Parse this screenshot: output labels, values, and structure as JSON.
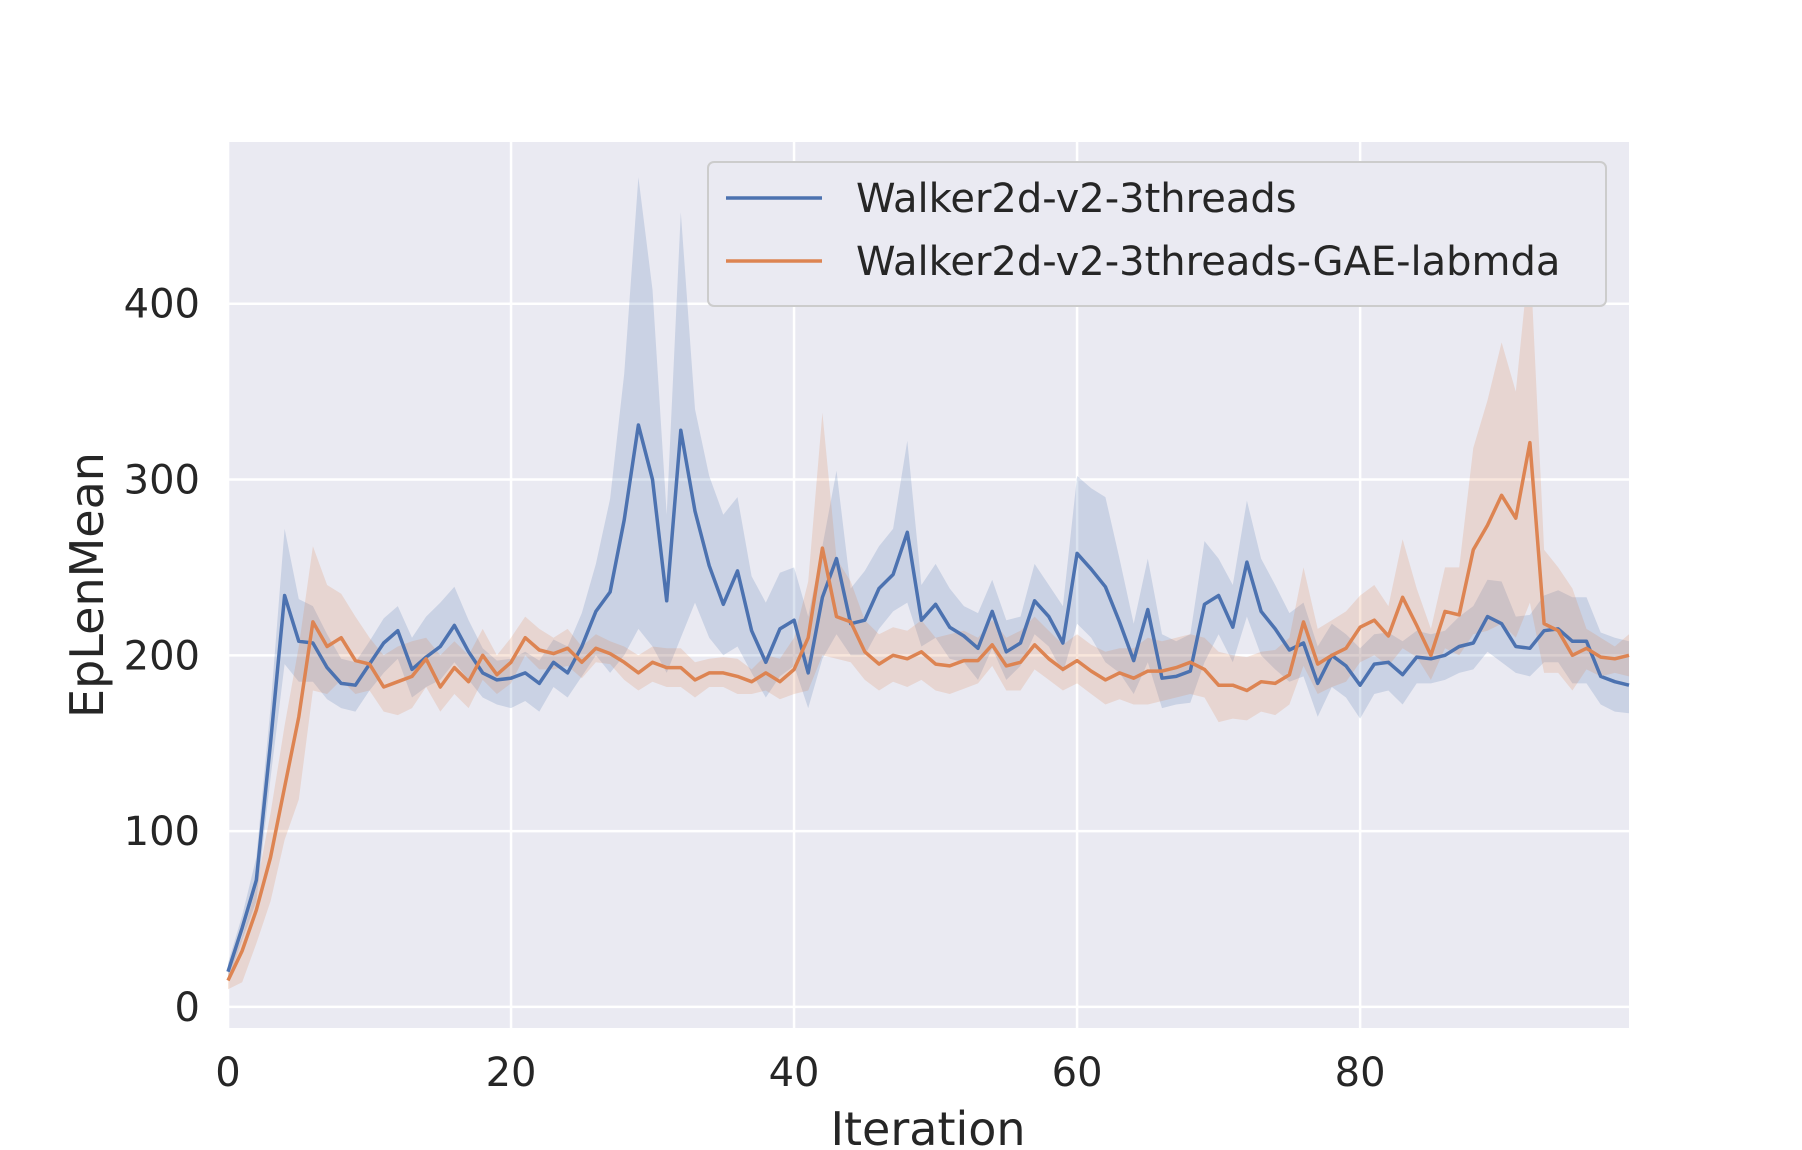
{
  "chart_data": {
    "type": "line",
    "xlabel": "Iteration",
    "ylabel": "EpLenMean",
    "xlim": [
      0,
      99
    ],
    "ylim": [
      -12,
      492
    ],
    "xticks": [
      0,
      20,
      40,
      60,
      80
    ],
    "yticks": [
      0,
      100,
      200,
      300,
      400
    ],
    "grid": true,
    "legend_position": "top-right",
    "x": [
      0,
      1,
      2,
      3,
      4,
      5,
      6,
      7,
      8,
      9,
      10,
      11,
      12,
      13,
      14,
      15,
      16,
      17,
      18,
      19,
      20,
      21,
      22,
      23,
      24,
      25,
      26,
      27,
      28,
      29,
      30,
      31,
      32,
      33,
      34,
      35,
      36,
      37,
      38,
      39,
      40,
      41,
      42,
      43,
      44,
      45,
      46,
      47,
      48,
      49,
      50,
      51,
      52,
      53,
      54,
      55,
      56,
      57,
      58,
      59,
      60,
      61,
      62,
      63,
      64,
      65,
      66,
      67,
      68,
      69,
      70,
      71,
      72,
      73,
      74,
      75,
      76,
      77,
      78,
      79,
      80,
      81,
      82,
      83,
      84,
      85,
      86,
      87,
      88,
      89,
      90,
      91,
      92,
      93,
      94,
      95,
      96,
      97,
      98,
      99
    ],
    "series": [
      {
        "name": "Walker2d-v2-3threads",
        "color": "#4c72b0",
        "values": [
          20,
          45,
          72,
          150,
          234,
          208,
          207,
          193,
          184,
          183,
          195,
          207,
          214,
          192,
          199,
          205,
          217,
          202,
          190,
          186,
          187,
          190,
          184,
          196,
          190,
          205,
          225,
          236,
          277,
          331,
          300,
          231,
          328,
          282,
          251,
          229,
          248,
          214,
          196,
          215,
          220,
          190,
          233,
          255,
          218,
          220,
          238,
          246,
          270,
          220,
          229,
          216,
          211,
          204,
          225,
          202,
          207,
          231,
          222,
          207,
          258,
          249,
          239,
          219,
          197,
          226,
          187,
          188,
          191,
          229,
          234,
          216,
          253,
          225,
          215,
          203,
          207,
          184,
          200,
          194,
          183,
          195,
          196,
          189,
          199,
          198,
          200,
          205,
          207,
          222,
          218,
          205,
          204,
          214,
          215,
          208,
          208,
          188,
          185,
          183
        ],
        "band_upper": [
          25,
          52,
          85,
          170,
          272,
          232,
          228,
          212,
          198,
          196,
          208,
          221,
          228,
          210,
          222,
          230,
          239,
          220,
          204,
          197,
          198,
          202,
          197,
          209,
          205,
          224,
          252,
          289,
          360,
          472,
          408,
          280,
          452,
          340,
          302,
          280,
          290,
          245,
          230,
          247,
          250,
          222,
          262,
          305,
          238,
          248,
          262,
          272,
          322,
          240,
          252,
          238,
          228,
          224,
          243,
          220,
          222,
          252,
          240,
          228,
          302,
          295,
          290,
          255,
          218,
          255,
          212,
          208,
          212,
          265,
          255,
          240,
          288,
          255,
          240,
          224,
          230,
          205,
          218,
          212,
          204,
          212,
          213,
          208,
          214,
          212,
          214,
          222,
          228,
          243,
          242,
          222,
          223,
          234,
          237,
          233,
          233,
          213,
          210,
          208
        ],
        "band_lower": [
          15,
          38,
          60,
          130,
          195,
          185,
          185,
          175,
          170,
          168,
          180,
          190,
          198,
          176,
          182,
          186,
          196,
          186,
          176,
          172,
          170,
          174,
          168,
          182,
          176,
          188,
          200,
          190,
          200,
          215,
          205,
          190,
          210,
          230,
          210,
          200,
          205,
          190,
          176,
          188,
          194,
          170,
          198,
          212,
          200,
          200,
          215,
          225,
          230,
          205,
          210,
          198,
          196,
          186,
          204,
          186,
          194,
          212,
          205,
          190,
          218,
          210,
          196,
          190,
          178,
          196,
          170,
          172,
          173,
          196,
          212,
          196,
          222,
          200,
          192,
          185,
          188,
          165,
          182,
          176,
          164,
          178,
          180,
          172,
          184,
          184,
          186,
          190,
          192,
          202,
          196,
          190,
          188,
          196,
          196,
          184,
          184,
          172,
          168,
          167
        ]
      },
      {
        "name": "Walker2d-v2-3threads-GAE-labmda",
        "color": "#dd8452",
        "values": [
          15,
          32,
          55,
          85,
          125,
          165,
          219,
          205,
          210,
          197,
          195,
          182,
          185,
          188,
          198,
          182,
          193,
          185,
          200,
          189,
          196,
          210,
          203,
          201,
          204,
          196,
          204,
          201,
          196,
          190,
          196,
          193,
          193,
          186,
          190,
          190,
          188,
          185,
          190,
          185,
          192,
          210,
          261,
          222,
          219,
          202,
          195,
          200,
          198,
          202,
          195,
          194,
          197,
          197,
          206,
          194,
          196,
          206,
          198,
          192,
          197,
          191,
          186,
          190,
          187,
          191,
          191,
          193,
          196,
          192,
          183,
          183,
          180,
          185,
          184,
          189,
          219,
          195,
          200,
          204,
          216,
          220,
          211,
          233,
          217,
          200,
          225,
          223,
          260,
          274,
          291,
          278,
          321,
          218,
          214,
          200,
          204,
          199,
          198,
          200
        ],
        "band_upper": [
          20,
          40,
          68,
          110,
          160,
          205,
          262,
          240,
          235,
          222,
          210,
          200,
          205,
          208,
          210,
          200,
          208,
          200,
          215,
          200,
          210,
          222,
          215,
          210,
          215,
          205,
          212,
          208,
          205,
          200,
          205,
          204,
          204,
          196,
          198,
          199,
          198,
          192,
          200,
          198,
          210,
          242,
          338,
          255,
          242,
          220,
          212,
          216,
          214,
          220,
          210,
          212,
          214,
          210,
          220,
          210,
          214,
          222,
          214,
          206,
          212,
          206,
          202,
          204,
          204,
          210,
          208,
          210,
          212,
          210,
          202,
          200,
          199,
          202,
          203,
          210,
          250,
          215,
          220,
          225,
          234,
          240,
          228,
          266,
          238,
          215,
          250,
          250,
          318,
          345,
          378,
          350,
          430,
          260,
          250,
          238,
          215,
          210,
          205,
          212
        ],
        "band_lower": [
          10,
          14,
          36,
          60,
          95,
          118,
          180,
          178,
          186,
          178,
          180,
          168,
          166,
          170,
          182,
          168,
          178,
          170,
          186,
          178,
          184,
          200,
          192,
          192,
          194,
          187,
          196,
          195,
          186,
          180,
          185,
          182,
          182,
          176,
          182,
          182,
          178,
          178,
          180,
          175,
          178,
          180,
          200,
          198,
          196,
          186,
          180,
          185,
          182,
          186,
          180,
          178,
          181,
          184,
          194,
          180,
          180,
          192,
          186,
          180,
          184,
          178,
          172,
          175,
          172,
          172,
          174,
          176,
          178,
          176,
          162,
          164,
          163,
          168,
          166,
          172,
          194,
          178,
          182,
          185,
          196,
          200,
          194,
          204,
          199,
          186,
          204,
          200,
          212,
          214,
          218,
          210,
          230,
          190,
          190,
          180,
          192,
          188,
          190,
          188
        ]
      }
    ]
  }
}
